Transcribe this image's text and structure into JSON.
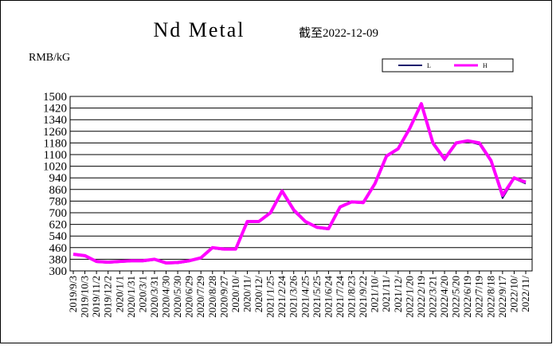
{
  "chart_data": {
    "type": "line",
    "title": "Nd Metal",
    "subtitle": "截至2022-12-09",
    "y_label": "RMB/kG",
    "categories": [
      "2019/9/3",
      "2019/10/3",
      "2019/11/2",
      "2019/12/2",
      "2020/1/1",
      "2020/1/31",
      "2020/3/1",
      "2020/3/31",
      "2020/4/30",
      "2020/5/30",
      "2020/6/29",
      "2020/7/29",
      "2020/8/28",
      "2020/9/27",
      "2020/10/",
      "2020/11/",
      "2020/12/",
      "2021/1/25",
      "2021/2/24",
      "2021/3/26",
      "2021/4/25",
      "2021/5/25",
      "2021/6/24",
      "2021/7/24",
      "2021/8/23",
      "2021/9/22",
      "2021/10/",
      "2021/11/",
      "2021/12/",
      "2022/1/20",
      "2022/2/19",
      "2022/3/21",
      "2022/4/20",
      "2022/5/20",
      "2022/6/19",
      "2022/7/19",
      "2022/8/18",
      "2022/9/17",
      "2022/10/",
      "2022/11/"
    ],
    "series": [
      {
        "name": "L",
        "color": "#1a1a6e",
        "values": [
          410,
          400,
          360,
          355,
          360,
          365,
          365,
          375,
          350,
          353,
          365,
          385,
          455,
          445,
          445,
          635,
          635,
          695,
          840,
          710,
          635,
          595,
          585,
          735,
          770,
          765,
          895,
          1085,
          1135,
          1275,
          1445,
          1170,
          1060,
          1175,
          1190,
          1170,
          1050,
          800,
          935,
          900
        ]
      },
      {
        "name": "H",
        "color": "#ff00ff",
        "values": [
          415,
          405,
          365,
          360,
          365,
          370,
          370,
          380,
          355,
          358,
          370,
          390,
          460,
          450,
          450,
          640,
          640,
          700,
          850,
          720,
          640,
          600,
          590,
          740,
          775,
          770,
          900,
          1090,
          1140,
          1280,
          1450,
          1180,
          1070,
          1180,
          1195,
          1180,
          1060,
          820,
          940,
          910
        ]
      }
    ],
    "ylim": [
      300,
      1500
    ],
    "yticks": [
      300,
      380,
      460,
      540,
      620,
      700,
      780,
      860,
      940,
      1020,
      1100,
      1180,
      1260,
      1340,
      1420,
      1500
    ],
    "grid": true
  }
}
